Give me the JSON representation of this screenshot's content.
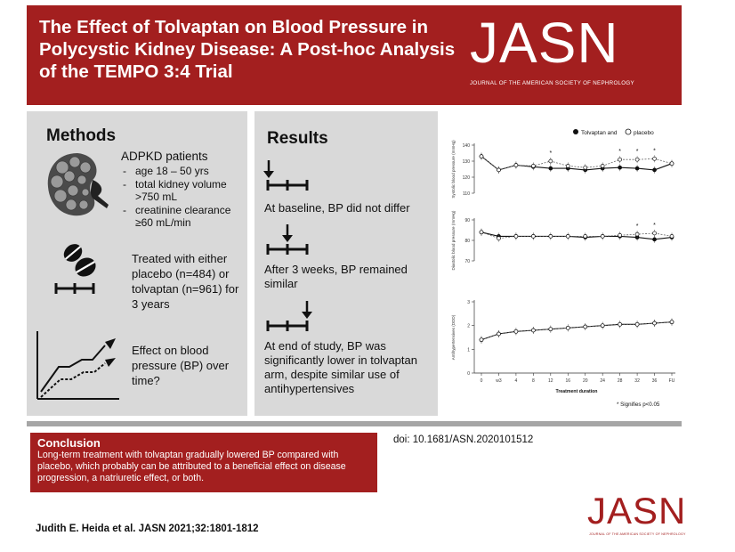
{
  "header": {
    "title": "The Effect of Tolvaptan on Blood Pressure in Polycystic Kidney Disease: A Post-hoc Analysis of the TEMPO 3:4 Trial",
    "logo": "JASN",
    "logo_subtitle": "JOURNAL OF THE AMERICAN SOCIETY OF NEPHROLOGY"
  },
  "methods": {
    "title": "Methods",
    "patients_heading": "ADPKD patients",
    "criteria": [
      "age 18 – 50 yrs",
      "total kidney volume >750 mL",
      "creatinine clearance ≥60 mL/min"
    ],
    "treatment": "Treated with either placebo (n=484) or tolvaptan (n=961) for 3 years",
    "outcome": "Effect on blood pressure (BP) over time?"
  },
  "results": {
    "title": "Results",
    "items": [
      "At baseline, BP did not differ",
      "After 3 weeks, BP remained similar",
      "At end of study, BP was significantly lower in tolvaptan arm, despite similar use of antihypertensives"
    ]
  },
  "chart_data": [
    {
      "type": "line",
      "ylabel": "Systolic blood pressure (mmHg)",
      "ylim": [
        110,
        140
      ],
      "yticks": [
        110,
        120,
        130,
        140
      ],
      "x": [
        "0",
        "w3",
        "4",
        "8",
        "12",
        "16",
        "20",
        "24",
        "28",
        "32",
        "36",
        "Fu"
      ],
      "series": [
        {
          "name": "Tolvaptan",
          "values": [
            133.0,
            124.5,
            127.5,
            126.5,
            125.5,
            125.5,
            124.5,
            125.5,
            126.0,
            125.5,
            124.5,
            128.5
          ]
        },
        {
          "name": "placebo",
          "values": [
            133.0,
            124.5,
            127.5,
            127.0,
            130.0,
            127.0,
            126.0,
            127.0,
            131.0,
            131.0,
            131.5,
            128.5
          ]
        }
      ],
      "significant_x": [
        "12",
        "28",
        "32",
        "36"
      ]
    },
    {
      "type": "line",
      "ylabel": "Diastolic blood pressure (mmHg)",
      "ylim": [
        70,
        90
      ],
      "yticks": [
        70,
        80,
        90
      ],
      "x": [
        "0",
        "w3",
        "4",
        "8",
        "12",
        "16",
        "20",
        "24",
        "28",
        "32",
        "36",
        "Fu"
      ],
      "series": [
        {
          "name": "Tolvaptan",
          "values": [
            84.0,
            82.0,
            82.0,
            82.0,
            82.0,
            82.0,
            81.5,
            82.0,
            82.0,
            81.5,
            80.5,
            81.5
          ]
        },
        {
          "name": "placebo",
          "values": [
            84.0,
            81.0,
            82.0,
            82.0,
            82.0,
            82.0,
            82.0,
            82.0,
            82.5,
            83.0,
            83.5,
            82.0
          ]
        }
      ],
      "significant_x": [
        "32",
        "36"
      ]
    },
    {
      "type": "line",
      "ylabel": "Antihypertensives (DDD)",
      "xlabel": "Treatment duration",
      "ylim": [
        0,
        3
      ],
      "yticks": [
        0,
        1,
        2,
        3
      ],
      "x": [
        "0",
        "w3",
        "4",
        "8",
        "12",
        "16",
        "20",
        "24",
        "28",
        "32",
        "36",
        "Fu"
      ],
      "series": [
        {
          "name": "Tolvaptan",
          "values": [
            1.4,
            1.65,
            1.75,
            1.8,
            1.85,
            1.9,
            1.95,
            2.0,
            2.05,
            2.05,
            2.1,
            2.15
          ]
        },
        {
          "name": "placebo",
          "values": [
            1.4,
            1.65,
            1.75,
            1.8,
            1.85,
            1.9,
            1.95,
            2.0,
            2.05,
            2.05,
            2.1,
            2.15
          ]
        }
      ],
      "xtick_labels": [
        "0",
        "w3",
        "4",
        "8",
        "12",
        "16",
        "20",
        "24",
        "28",
        "32",
        "36",
        "FU"
      ]
    }
  ],
  "chart_legend": {
    "tolvaptan": "Tolvaptan and",
    "placebo": "placebo"
  },
  "chart_note": "* Signifies p<0.05",
  "conclusion": {
    "title": "Conclusion",
    "text": "Long-term treatment with tolvaptan gradually lowered BP compared with placebo, which probably can be attributed to a beneficial effect on disease progression, a natriuretic effect, or both."
  },
  "doi": "doi: 10.1681/ASN.2020101512",
  "citation": "Judith E. Heida et al. JASN 2021;32:1801-1812",
  "footer_logo": "JASN",
  "footer_logo_subtitle": "JOURNAL OF THE AMERICAN SOCIETY OF NEPHROLOGY",
  "colors": {
    "brand": "#a31f1f",
    "panel": "#d9d9d9",
    "rule": "#a6a6a6"
  }
}
